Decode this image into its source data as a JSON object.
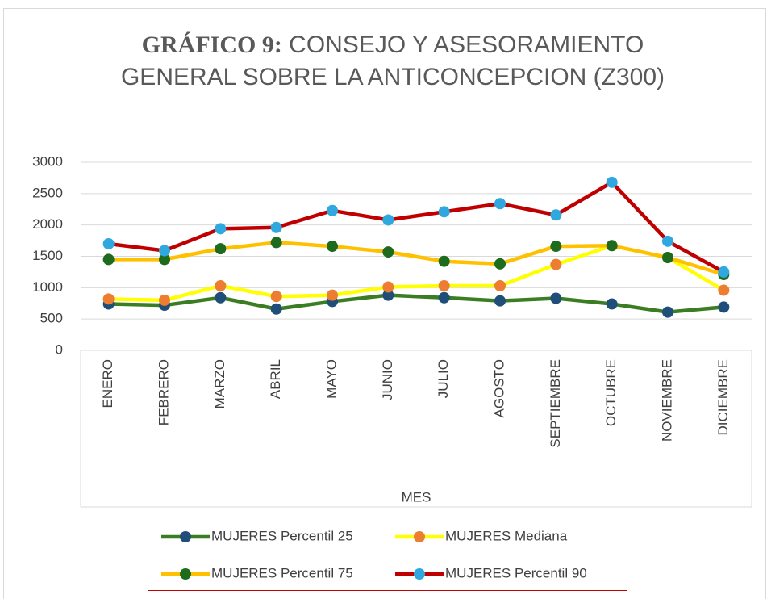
{
  "chart_data": {
    "type": "line",
    "title_label": "GRÁFICO 9:",
    "title": "CONSEJO Y ASESORAMIENTO GENERAL SOBRE LA ANTICONCEPCION (Z300)",
    "x_label": "MES",
    "categories": [
      "ENERO",
      "FEBRERO",
      "MARZO",
      "ABRIL",
      "MAYO",
      "JUNIO",
      "JULIO",
      "AGOSTO",
      "SEPTIEMBRE",
      "OCTUBRE",
      "NOVIEMBRE",
      "DICIEMBRE"
    ],
    "series": [
      {
        "name": "MUJERES Percentil 25",
        "color": "#3a7d22",
        "marker_color": "#1f4e79",
        "values": [
          740,
          720,
          840,
          660,
          780,
          880,
          840,
          790,
          830,
          740,
          610,
          690
        ]
      },
      {
        "name": "MUJERES Mediana",
        "color": "#ffff00",
        "marker_color": "#ed7d31",
        "values": [
          820,
          800,
          1030,
          860,
          880,
          1010,
          1030,
          1030,
          1370,
          1670,
          1480,
          960
        ]
      },
      {
        "name": "MUJERES Percentil 75",
        "color": "#ffc000",
        "marker_color": "#1e6b1e",
        "values": [
          1450,
          1450,
          1620,
          1720,
          1660,
          1570,
          1420,
          1380,
          1660,
          1670,
          1480,
          1210
        ]
      },
      {
        "name": "MUJERES Percentil 90",
        "color": "#c00000",
        "marker_color": "#2ea8df",
        "values": [
          1700,
          1590,
          1940,
          1960,
          2230,
          2080,
          2210,
          2340,
          2160,
          2680,
          1740,
          1250
        ]
      }
    ],
    "ylim": [
      0,
      3000
    ],
    "yticks": [
      0,
      500,
      1000,
      1500,
      2000,
      2500,
      3000
    ],
    "grid": true
  }
}
